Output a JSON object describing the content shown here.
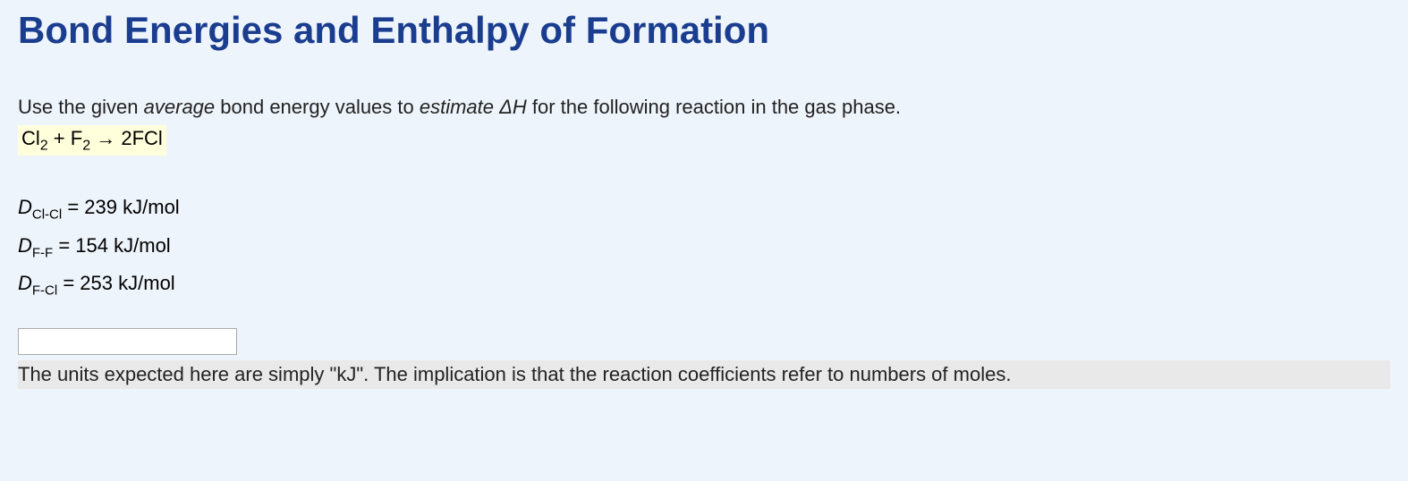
{
  "title": "Bond Energies and Enthalpy of Formation",
  "instruction": {
    "prefix": "Use the given ",
    "em1": "average",
    "mid1": " bond energy values to ",
    "em2": "estimate ΔH",
    "suffix": " for the following reaction in the gas phase."
  },
  "equation": {
    "reactant1_base": "Cl",
    "reactant1_sub": "2",
    "plus": " + ",
    "reactant2_base": "F",
    "reactant2_sub": "2",
    "arrow": " → ",
    "product": "2FCl"
  },
  "bonds": {
    "d_symbol": "D",
    "equals": " = ",
    "unit": " kJ/mol",
    "row1_sub": "Cl-Cl",
    "row1_val": "239",
    "row2_sub": "F-F",
    "row2_val": "154",
    "row3_sub": "F-Cl",
    "row3_val": "253"
  },
  "input": {
    "value": ""
  },
  "hint": "The units expected here are simply \"kJ\". The implication is that the reaction coefficients refer to numbers of moles."
}
